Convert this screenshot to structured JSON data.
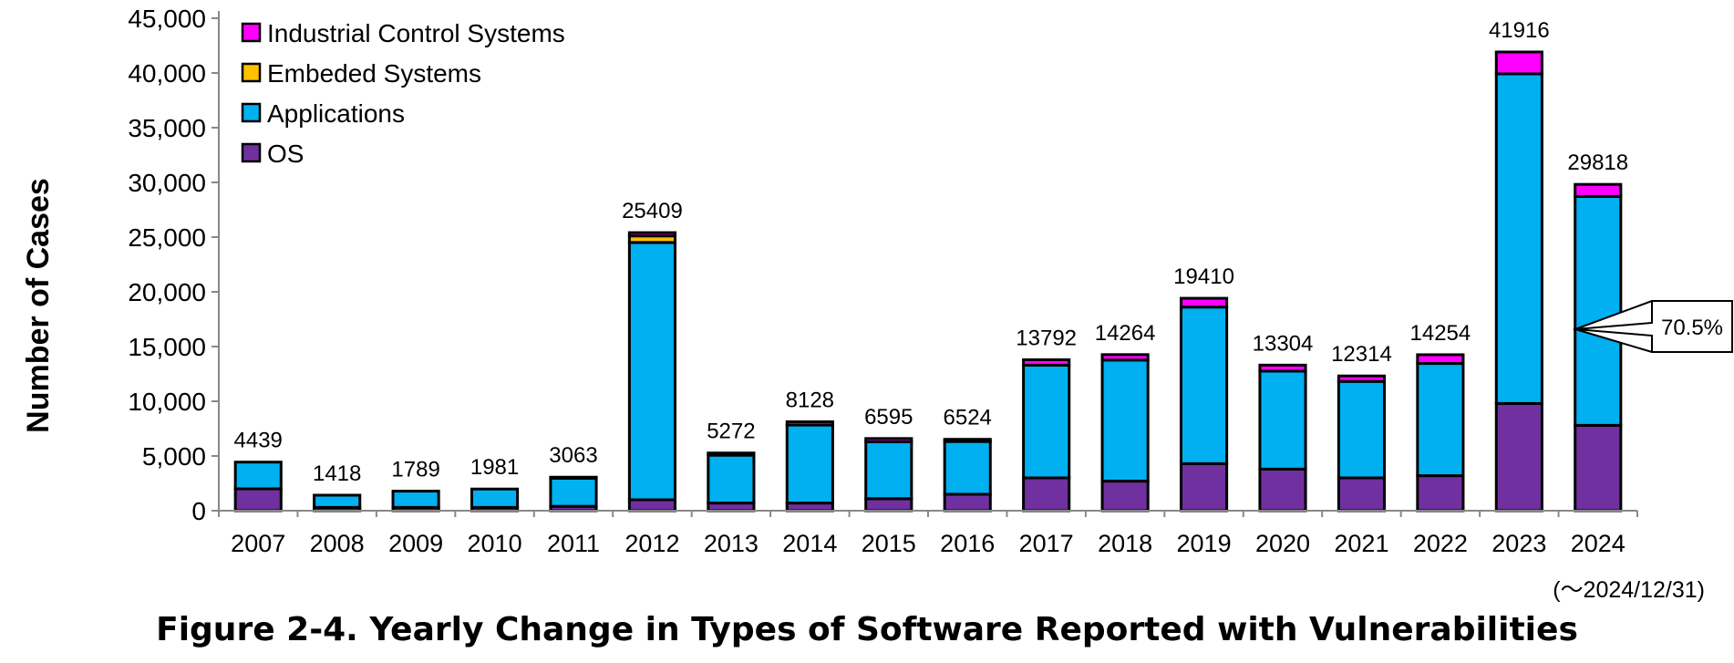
{
  "chart_data": {
    "type": "bar",
    "stacked": true,
    "title": "Figure 2-4. Yearly Change in Types of Software Reported with Vulnerabilities",
    "ylabel": "Number of Cases",
    "xlabel": "",
    "ylim": [
      0,
      45000
    ],
    "yticks": [
      0,
      5000,
      10000,
      15000,
      20000,
      25000,
      30000,
      35000,
      40000,
      45000
    ],
    "ytick_labels": [
      "0",
      "5,000",
      "10,000",
      "15,000",
      "20,000",
      "25,000",
      "30,000",
      "35,000",
      "40,000",
      "45,000"
    ],
    "categories": [
      "2007",
      "2008",
      "2009",
      "2010",
      "2011",
      "2012",
      "2013",
      "2014",
      "2015",
      "2016",
      "2017",
      "2018",
      "2019",
      "2020",
      "2021",
      "2022",
      "2023",
      "2024"
    ],
    "series": [
      {
        "name": "OS",
        "color": "#7030A0",
        "values": [
          2000,
          300,
          300,
          300,
          400,
          1000,
          700,
          700,
          1100,
          1500,
          3000,
          2700,
          4300,
          3800,
          3000,
          3200,
          9800,
          7800
        ]
      },
      {
        "name": "Applications",
        "color": "#00B0F0",
        "values": [
          2439,
          1118,
          1489,
          1681,
          2563,
          23509,
          4372,
          7128,
          5195,
          4824,
          10292,
          11064,
          14310,
          8954,
          8814,
          10254,
          30116,
          20918
        ]
      },
      {
        "name": "Embeded Systems",
        "color": "#FFC000",
        "values": [
          0,
          0,
          0,
          0,
          0,
          600,
          0,
          0,
          0,
          0,
          0,
          0,
          0,
          0,
          0,
          0,
          0,
          0
        ]
      },
      {
        "name": "Industrial Control Systems",
        "color": "#FF00FF",
        "values": [
          0,
          0,
          0,
          0,
          100,
          300,
          200,
          300,
          300,
          200,
          500,
          500,
          800,
          550,
          500,
          800,
          2000,
          1100
        ]
      }
    ],
    "totals": [
      4439,
      1418,
      1789,
      1981,
      3063,
      25409,
      5272,
      8128,
      6595,
      6524,
      13792,
      14264,
      19410,
      13304,
      12314,
      14254,
      41916,
      29818
    ],
    "legend": [
      "Industrial Control Systems",
      "Embeded Systems",
      "Applications",
      "OS"
    ],
    "legend_position": "top-left",
    "annotation": "70.5%",
    "note": "(～2024/12/31)"
  }
}
